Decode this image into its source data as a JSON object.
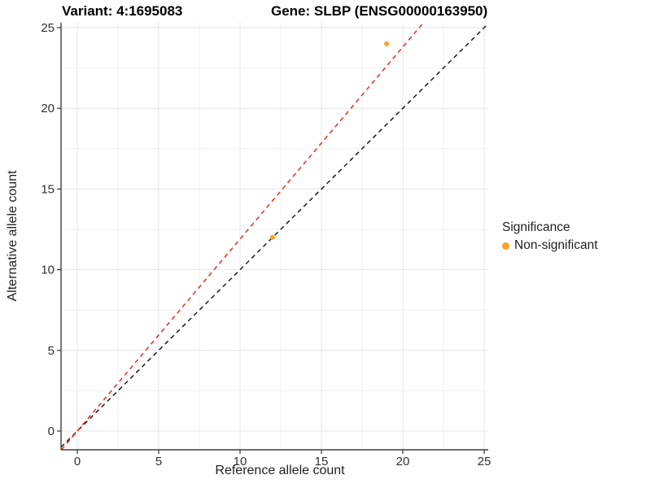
{
  "header": {
    "variant_title": "Variant: 4:1695083",
    "gene_title": "Gene: SLBP (ENSG00000163950)"
  },
  "chart_data": {
    "type": "scatter",
    "title": "Variant: 4:1695083",
    "subtitle": "Gene: SLBP (ENSG00000163950)",
    "xlabel": "Reference allele count",
    "ylabel": "Alternative allele count",
    "xlim": [
      -1,
      25.25
    ],
    "ylim": [
      -1.16,
      25.3
    ],
    "x_ticks": [
      0,
      5,
      10,
      15,
      20,
      25
    ],
    "y_ticks": [
      0,
      5,
      10,
      15,
      20,
      25
    ],
    "x_minor_ticks": [
      2.5,
      7.5,
      12.5,
      17.5,
      22.5
    ],
    "y_minor_ticks": [
      2.5,
      7.5,
      12.5,
      17.5,
      22.5
    ],
    "grid": true,
    "colors": {
      "major_grid": "#E6E6E6",
      "minor_grid": "#F2F2F2",
      "axis_line": "#3F3F3F",
      "tick_text": "#303030"
    },
    "series": [
      {
        "name": "Non-significant",
        "color": "#F8A125",
        "points": [
          {
            "x": 12,
            "y": 12
          },
          {
            "x": 19,
            "y": 24
          }
        ]
      }
    ],
    "lines": [
      {
        "name": "identity-line",
        "style": "dashed",
        "color": "#1A1A1A",
        "slope": 1,
        "intercept": 0
      },
      {
        "name": "expected-ratio-line",
        "style": "dashed",
        "color": "#EE2A1D",
        "slope": 1.19,
        "intercept": 0
      }
    ],
    "legend": {
      "title": "Significance",
      "position": "right",
      "entries": [
        {
          "label": "Non-significant",
          "color": "#F8A125"
        }
      ]
    }
  }
}
